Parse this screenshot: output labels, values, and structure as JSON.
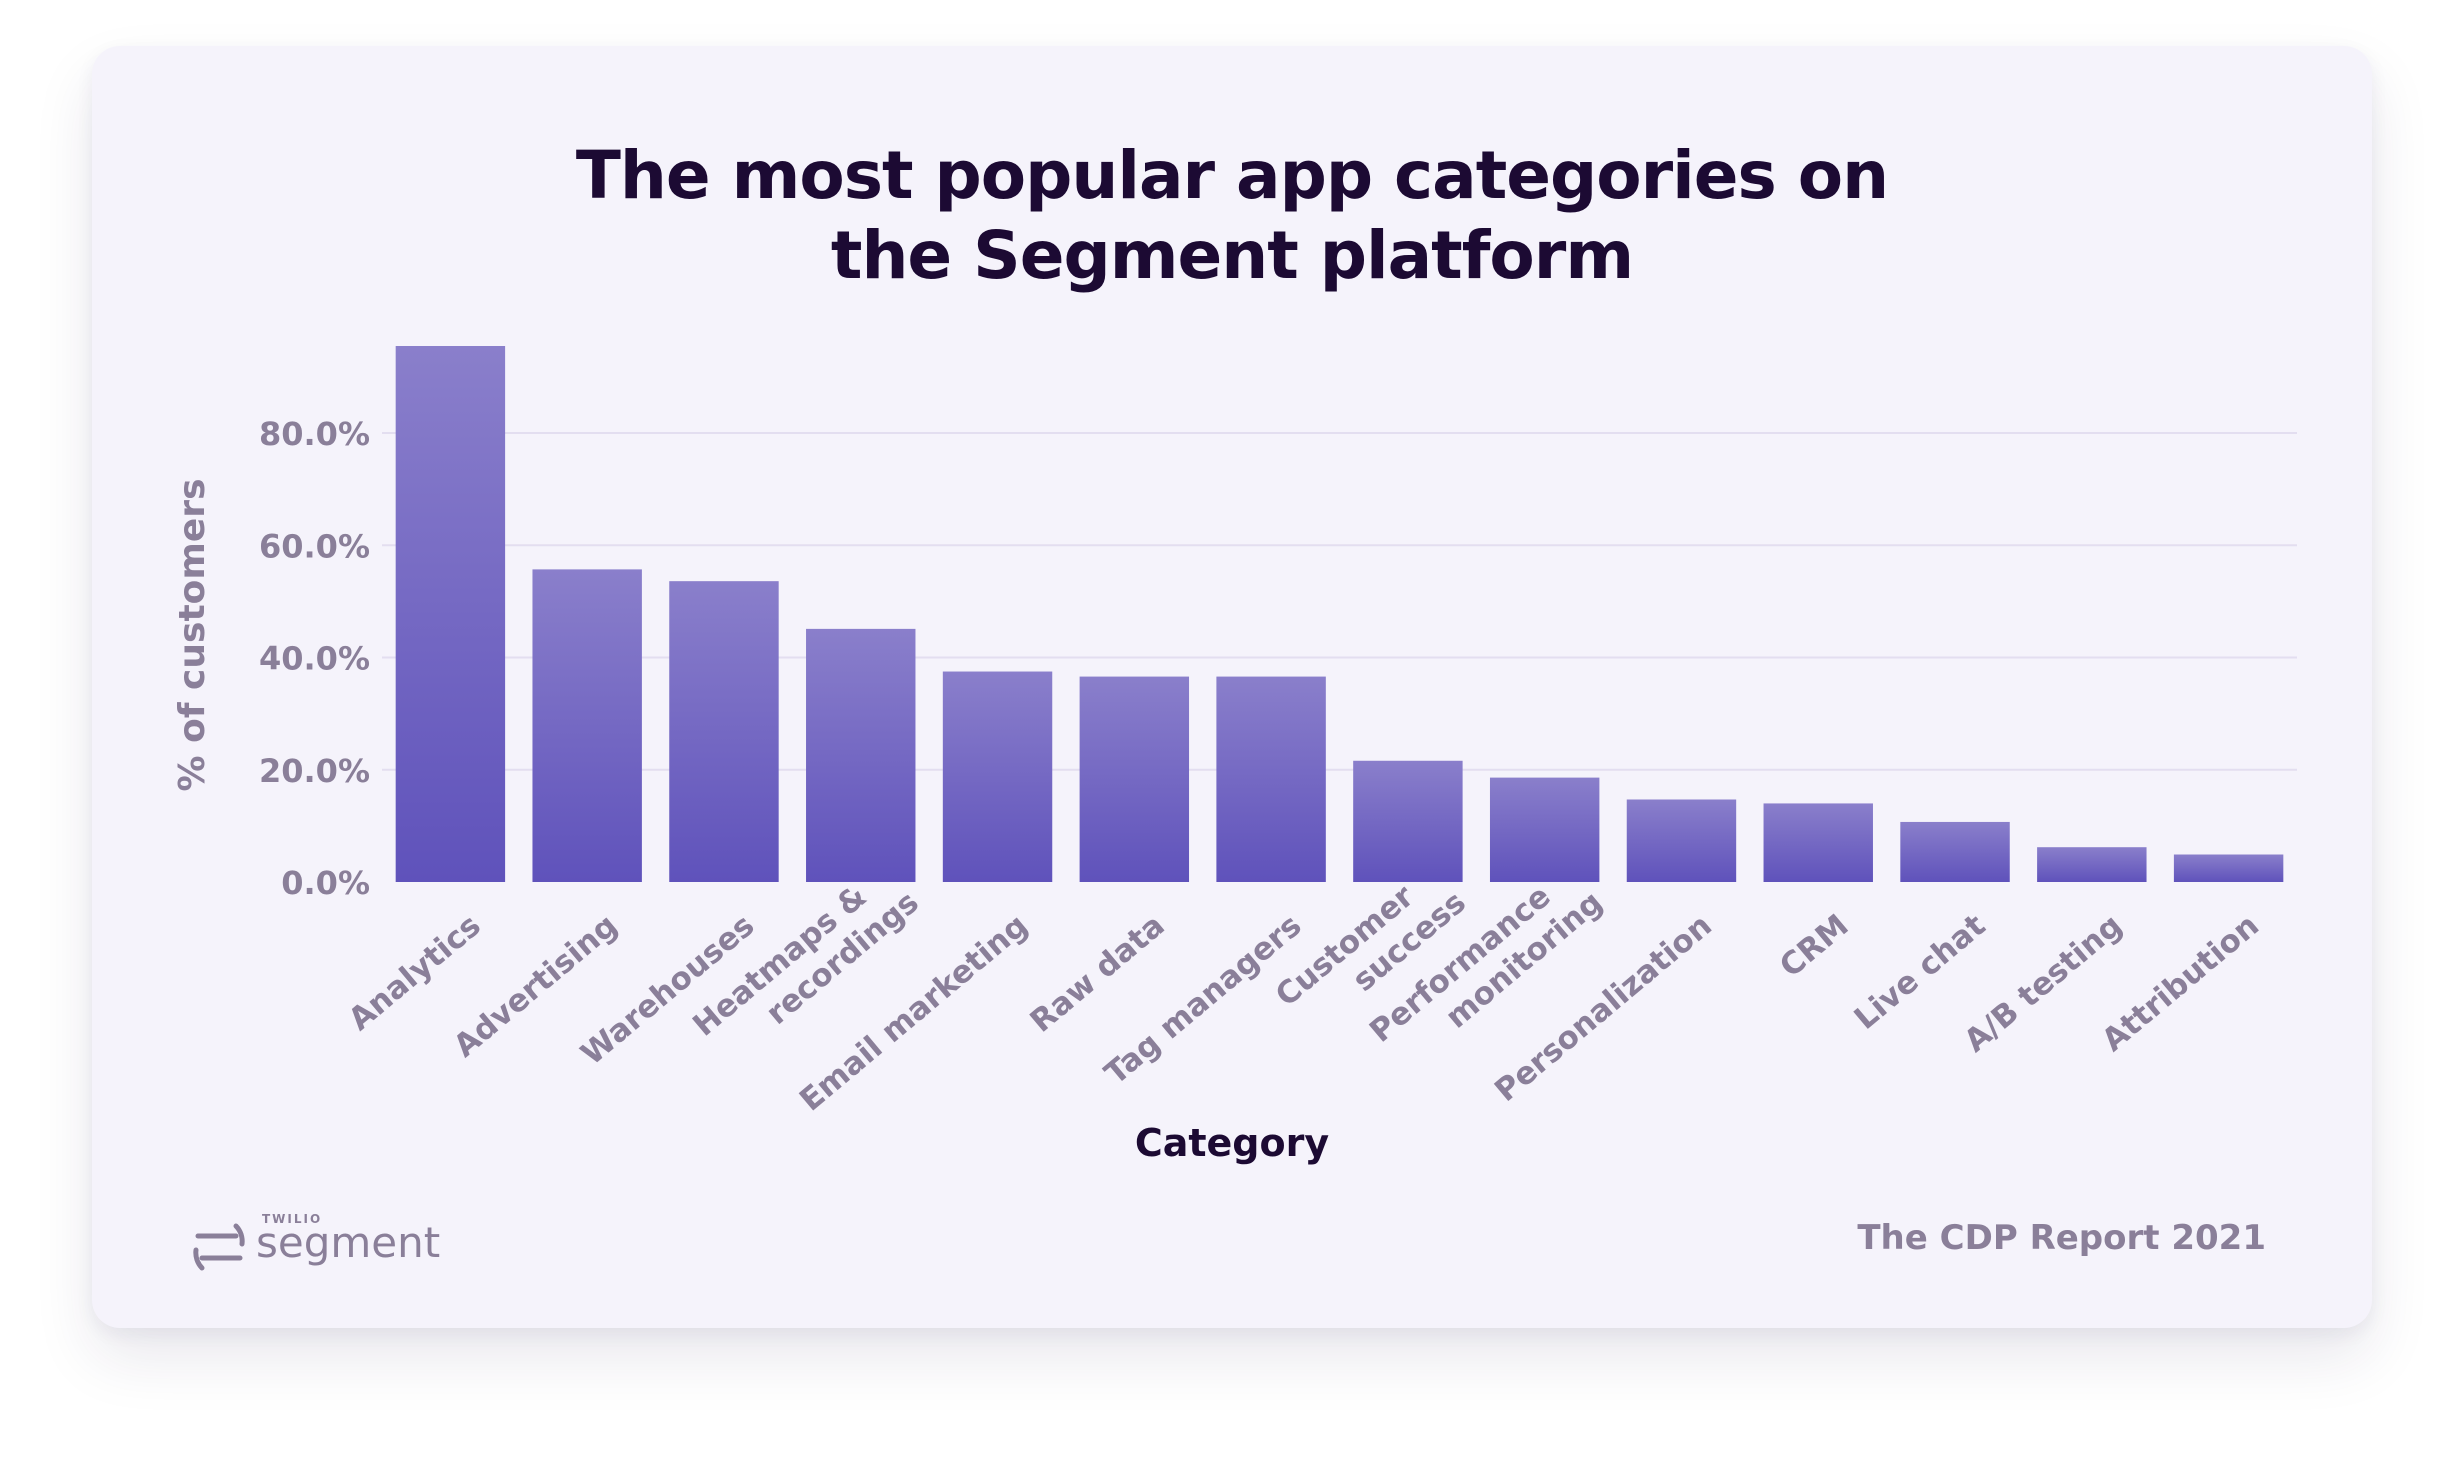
{
  "chart_data": {
    "type": "bar",
    "title": [
      "The most popular app categories on",
      "the Segment platform"
    ],
    "xlabel": "Category",
    "ylabel": "% of customers",
    "ylim": [
      0,
      100
    ],
    "yticks": [
      {
        "value": 0,
        "label": "0.0%"
      },
      {
        "value": 20,
        "label": "20.0%"
      },
      {
        "value": 40,
        "label": "40.0%"
      },
      {
        "value": 60,
        "label": "60.0%"
      },
      {
        "value": 80,
        "label": "80.0%"
      }
    ],
    "grid": true,
    "categories": [
      [
        "Analytics"
      ],
      [
        "Advertising"
      ],
      [
        "Warehouses"
      ],
      [
        "Heatmaps &",
        "recordings"
      ],
      [
        "Email marketing"
      ],
      [
        "Raw data"
      ],
      [
        "Tag managers"
      ],
      [
        "Customer",
        "success"
      ],
      [
        "Performance",
        "monitoring"
      ],
      [
        "Personalization"
      ],
      [
        "CRM"
      ],
      [
        "Live chat"
      ],
      [
        "A/B testing"
      ],
      [
        "Attribution"
      ]
    ],
    "values": [
      95.5,
      55.7,
      53.6,
      45.1,
      37.5,
      36.6,
      36.6,
      21.6,
      18.6,
      14.7,
      14.0,
      10.7,
      6.2,
      4.9
    ],
    "colors": {
      "bar_top": "#8a7fcb",
      "bar_bottom": "#5f52bb",
      "grid": "#e3def0",
      "tick": "#8a7f99",
      "axis_label": "#8a7f99",
      "xlabel": "#1c0a33"
    }
  },
  "footer": {
    "brand_small": "TWILIO",
    "brand_name": "segment",
    "report": "The CDP Report 2021"
  }
}
